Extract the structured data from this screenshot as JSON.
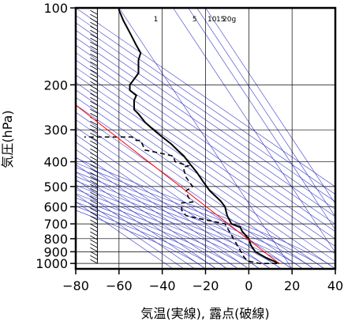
{
  "chart_data": {
    "type": "line",
    "title": "",
    "xlabel": "気温(実線), 露点(破線)",
    "ylabel": "気圧(hPa)",
    "xlim": [
      -80,
      40
    ],
    "ylim": [
      1050,
      100
    ],
    "y_scale": "log",
    "x_ticks": [
      -80,
      -60,
      -40,
      -20,
      0,
      20,
      40
    ],
    "x_tick_labels": [
      "−80",
      "−60",
      "−40",
      "−20",
      "0",
      "20",
      "40"
    ],
    "y_ticks": [
      100,
      200,
      300,
      400,
      500,
      600,
      700,
      800,
      900,
      1000
    ],
    "y_tick_labels": [
      "100",
      "200",
      "300",
      "400",
      "500",
      "600",
      "700",
      "800",
      "900",
      "1000"
    ],
    "grid": true,
    "mixing_ratio_labels": [
      "1",
      "5",
      "10",
      "15",
      "20g"
    ],
    "series": [
      {
        "style": "solid",
        "color": "#000000",
        "x": [
          14,
          8,
          3,
          1,
          0,
          -3,
          -4,
          -8,
          -10,
          -11,
          -13,
          -18,
          -21,
          -24,
          -27,
          -30,
          -33,
          -36,
          -40,
          -44,
          -48,
          -51,
          -53,
          -53,
          -52,
          -55,
          -55,
          -53,
          -51,
          -51,
          -50,
          -52,
          -55,
          -58,
          -60,
          -60
        ],
        "y": [
          1000,
          950,
          900,
          850,
          800,
          750,
          720,
          700,
          650,
          600,
          570,
          520,
          480,
          440,
          410,
          380,
          360,
          340,
          320,
          300,
          280,
          260,
          250,
          230,
          220,
          210,
          200,
          190,
          180,
          160,
          150,
          140,
          125,
          112,
          102,
          100
        ]
      },
      {
        "style": "dashed",
        "color": "#000000",
        "x": [
          13,
          5,
          0,
          -2,
          -11,
          -22,
          -29,
          -31,
          -31,
          -26,
          -28,
          -29,
          -26,
          -29,
          -30,
          -30,
          -28,
          -34,
          -35,
          -41,
          -48,
          -50,
          -52,
          -54,
          -68,
          -76
        ],
        "y": [
          1000,
          1000,
          980,
          950,
          700,
          670,
          650,
          620,
          580,
          575,
          550,
          520,
          500,
          460,
          430,
          420,
          415,
          400,
          380,
          370,
          360,
          330,
          330,
          320,
          320,
          320
        ]
      },
      {
        "style": "solid",
        "color": "#ff0000",
        "x": [
          14,
          -80
        ],
        "y": [
          1000,
          240
        ]
      }
    ]
  }
}
